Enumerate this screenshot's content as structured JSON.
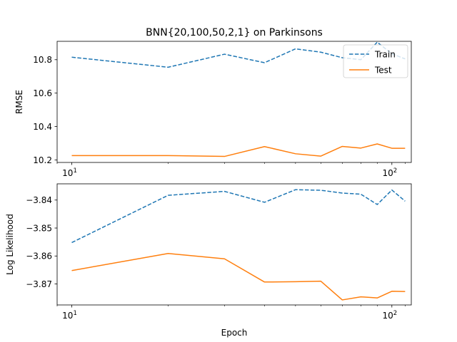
{
  "chart_data": [
    {
      "type": "line",
      "title": "BNN{20,100,50,2,1} on Parkinsons",
      "xlabel": "",
      "ylabel": "RMSE",
      "xscale": "log",
      "xlim": [
        9,
        115
      ],
      "ylim": [
        10.185,
        10.91
      ],
      "xticks": [
        {
          "value": 10,
          "base": "10",
          "exp": "1"
        },
        {
          "value": 100,
          "base": "10",
          "exp": "2"
        }
      ],
      "yticks": [
        {
          "value": 10.2,
          "label": "10.2"
        },
        {
          "value": 10.4,
          "label": "10.4"
        },
        {
          "value": 10.6,
          "label": "10.6"
        },
        {
          "value": 10.8,
          "label": "10.8"
        }
      ],
      "legend": {
        "position": "top-right"
      },
      "x": [
        10,
        20,
        30,
        40,
        50,
        60,
        70,
        80,
        90,
        100,
        110
      ],
      "series": [
        {
          "name": "Train",
          "color": "#1f77b4",
          "dash": "dashed",
          "values": [
            10.815,
            10.755,
            10.833,
            10.782,
            10.865,
            10.845,
            10.812,
            10.8,
            10.905,
            10.835,
            10.805
          ]
        },
        {
          "name": "Test",
          "color": "#ff7f0e",
          "dash": "solid",
          "values": [
            10.226,
            10.226,
            10.221,
            10.28,
            10.237,
            10.223,
            10.281,
            10.271,
            10.296,
            10.27,
            10.27
          ]
        }
      ]
    },
    {
      "type": "line",
      "title": "",
      "xlabel": "Epoch",
      "ylabel": "Log Likelihood",
      "xscale": "log",
      "xlim": [
        9,
        115
      ],
      "ylim": [
        -3.8775,
        -3.8342
      ],
      "xticks": [
        {
          "value": 10,
          "base": "10",
          "exp": "1"
        },
        {
          "value": 100,
          "base": "10",
          "exp": "2"
        }
      ],
      "yticks": [
        {
          "value": -3.84,
          "label": "−3.84"
        },
        {
          "value": -3.85,
          "label": "−3.85"
        },
        {
          "value": -3.86,
          "label": "−3.86"
        },
        {
          "value": -3.87,
          "label": "−3.87"
        }
      ],
      "x": [
        10,
        20,
        30,
        40,
        50,
        60,
        70,
        80,
        90,
        100,
        110
      ],
      "series": [
        {
          "name": "Train",
          "color": "#1f77b4",
          "dash": "dashed",
          "values": [
            -3.8552,
            -3.8383,
            -3.8369,
            -3.8408,
            -3.8363,
            -3.8365,
            -3.8375,
            -3.8379,
            -3.8416,
            -3.8364,
            -3.8404
          ]
        },
        {
          "name": "Test",
          "color": "#ff7f0e",
          "dash": "solid",
          "values": [
            -3.8652,
            -3.8591,
            -3.861,
            -3.8693,
            -3.8692,
            -3.869,
            -3.8757,
            -3.8746,
            -3.875,
            -3.8726,
            -3.8727
          ]
        }
      ]
    }
  ]
}
